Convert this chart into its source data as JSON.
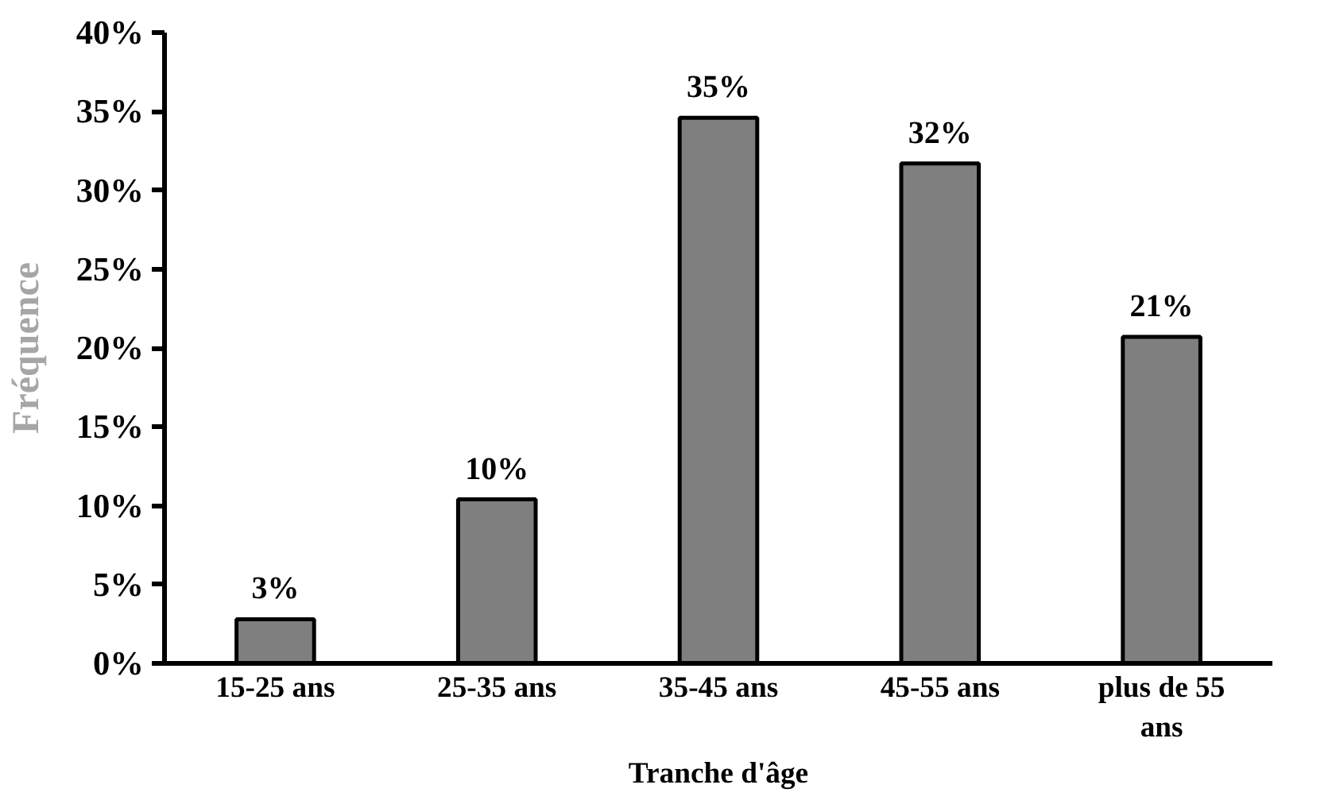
{
  "chart_data": {
    "type": "bar",
    "xlabel": "Tranche d'âge",
    "ylabel": "Fréquence",
    "categories": [
      "15-25 ans",
      "25-35 ans",
      "35-45 ans",
      "45-55 ans",
      "plus de 55 ans"
    ],
    "values": [
      2.8,
      10.4,
      34.6,
      31.7,
      20.7
    ],
    "value_labels": [
      "3%",
      "10%",
      "35%",
      "32%",
      "21%"
    ],
    "color": "#000000",
    "ylim": [
      0,
      40
    ],
    "yticks": [
      {
        "value": 0,
        "label": "0%"
      },
      {
        "value": 5,
        "label": "5%"
      },
      {
        "value": 10,
        "label": "10%"
      },
      {
        "value": 15,
        "label": "15%"
      },
      {
        "value": 20,
        "label": "20%"
      },
      {
        "value": 25,
        "label": "25%"
      },
      {
        "value": 30,
        "label": "30%"
      },
      {
        "value": 35,
        "label": "35%"
      },
      {
        "value": 40,
        "label": "40%"
      }
    ],
    "grid": false
  }
}
